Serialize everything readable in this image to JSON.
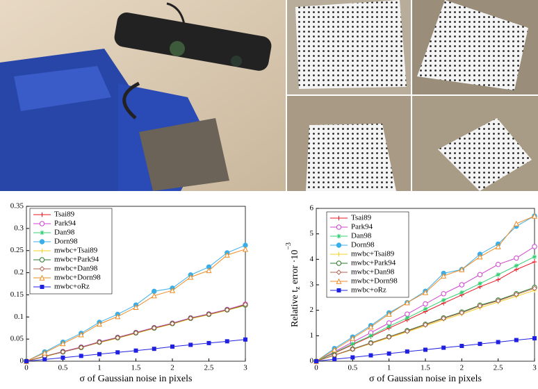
{
  "chart_data": [
    {
      "type": "line",
      "xlabel": "σ of Gaussian noise in pixels",
      "legend": "upper left",
      "x": [
        0,
        0.25,
        0.5,
        0.75,
        1,
        1.25,
        1.5,
        1.75,
        2,
        2.25,
        2.5,
        2.75,
        3
      ],
      "xlim": [
        0,
        3
      ],
      "xticks": [
        0,
        0.5,
        1,
        1.5,
        2,
        2.5,
        3
      ],
      "ylim": [
        0,
        0.35
      ],
      "yticks": [
        0,
        0.05,
        0.1,
        0.15,
        0.2,
        0.25,
        0.3,
        0.35
      ],
      "series": [
        {
          "name": "Tsai89",
          "color": "#e8141e",
          "marker": "plus",
          "values": [
            0,
            0.011,
            0.021,
            0.032,
            0.043,
            0.053,
            0.064,
            0.075,
            0.085,
            0.097,
            0.106,
            0.116,
            0.128
          ]
        },
        {
          "name": "Park94",
          "color": "#d040d0",
          "marker": "circle",
          "values": [
            0,
            0.011,
            0.022,
            0.032,
            0.044,
            0.054,
            0.065,
            0.076,
            0.086,
            0.098,
            0.107,
            0.117,
            0.129
          ]
        },
        {
          "name": "Dan98",
          "color": "#30d070",
          "marker": "asterisk",
          "values": [
            0,
            0.011,
            0.021,
            0.031,
            0.043,
            0.053,
            0.064,
            0.075,
            0.085,
            0.097,
            0.106,
            0.116,
            0.127
          ]
        },
        {
          "name": "Dorn98",
          "color": "#3aaee8",
          "marker": "dot",
          "values": [
            0,
            0.021,
            0.043,
            0.063,
            0.088,
            0.106,
            0.127,
            0.158,
            0.165,
            0.195,
            0.213,
            0.245,
            0.262
          ]
        },
        {
          "name": "mwbc+Tsai89",
          "color": "#f0d020",
          "marker": "plus",
          "values": [
            0,
            0.01,
            0.021,
            0.031,
            0.042,
            0.052,
            0.063,
            0.074,
            0.084,
            0.096,
            0.105,
            0.115,
            0.126
          ]
        },
        {
          "name": "mwbc+Park94",
          "color": "#2a7a2a",
          "marker": "circle",
          "values": [
            0,
            0.011,
            0.021,
            0.031,
            0.043,
            0.053,
            0.064,
            0.075,
            0.085,
            0.097,
            0.106,
            0.116,
            0.127
          ]
        },
        {
          "name": "mwbc+Dan98",
          "color": "#b06050",
          "marker": "diamond",
          "values": [
            0,
            0.011,
            0.021,
            0.031,
            0.043,
            0.053,
            0.064,
            0.075,
            0.085,
            0.097,
            0.106,
            0.116,
            0.128
          ]
        },
        {
          "name": "mwbc+Dorn98",
          "color": "#f08a20",
          "marker": "triangle",
          "values": [
            0,
            0.019,
            0.04,
            0.06,
            0.084,
            0.101,
            0.122,
            0.148,
            0.16,
            0.19,
            0.205,
            0.24,
            0.253
          ]
        },
        {
          "name": "mwbc+oRz",
          "color": "#2020e0",
          "marker": "square",
          "values": [
            0,
            0.004,
            0.008,
            0.012,
            0.016,
            0.02,
            0.024,
            0.028,
            0.033,
            0.037,
            0.041,
            0.045,
            0.049
          ]
        }
      ]
    },
    {
      "type": "line",
      "xlabel": "σ of Gaussian noise in pixels",
      "ylabel": [
        "Relative t",
        "z",
        " error ·10",
        "−3"
      ],
      "legend": "upper left",
      "x": [
        0,
        0.25,
        0.5,
        0.75,
        1,
        1.25,
        1.5,
        1.75,
        2,
        2.25,
        2.5,
        2.75,
        3
      ],
      "xlim": [
        0,
        3
      ],
      "xticks": [
        0,
        0.5,
        1,
        1.5,
        2,
        2.5,
        3
      ],
      "ylim": [
        0,
        6
      ],
      "yticks": [
        0,
        1,
        2,
        3,
        4,
        5,
        6
      ],
      "series": [
        {
          "name": "Tsai89",
          "color": "#e8141e",
          "marker": "plus",
          "values": [
            0,
            0.32,
            0.65,
            0.97,
            1.3,
            1.62,
            1.95,
            2.28,
            2.6,
            2.92,
            3.2,
            3.6,
            3.9
          ]
        },
        {
          "name": "Park94",
          "color": "#d040d0",
          "marker": "circle",
          "values": [
            0,
            0.37,
            0.75,
            1.12,
            1.5,
            1.85,
            2.25,
            2.65,
            3.0,
            3.4,
            3.8,
            4.05,
            4.5
          ]
        },
        {
          "name": "Dan98",
          "color": "#30d070",
          "marker": "asterisk",
          "values": [
            0,
            0.34,
            0.68,
            1.0,
            1.37,
            1.7,
            2.05,
            2.4,
            2.7,
            3.05,
            3.4,
            3.75,
            4.1
          ]
        },
        {
          "name": "Dorn98",
          "color": "#3aaee8",
          "marker": "dot",
          "values": [
            0,
            0.5,
            0.95,
            1.4,
            1.9,
            2.3,
            2.75,
            3.45,
            3.6,
            4.2,
            4.6,
            5.3,
            5.7
          ]
        },
        {
          "name": "mwbc+Tsai89",
          "color": "#f0d020",
          "marker": "plus",
          "values": [
            0,
            0.23,
            0.46,
            0.69,
            0.92,
            1.15,
            1.39,
            1.63,
            1.85,
            2.1,
            2.32,
            2.55,
            2.78
          ]
        },
        {
          "name": "mwbc+Park94",
          "color": "#2a7a2a",
          "marker": "circle",
          "values": [
            0,
            0.24,
            0.48,
            0.72,
            0.96,
            1.2,
            1.45,
            1.7,
            1.93,
            2.2,
            2.4,
            2.65,
            2.9
          ]
        },
        {
          "name": "mwbc+Dan98",
          "color": "#b06050",
          "marker": "diamond",
          "values": [
            0,
            0.24,
            0.47,
            0.71,
            0.95,
            1.18,
            1.43,
            1.68,
            1.9,
            2.17,
            2.37,
            2.62,
            2.86
          ]
        },
        {
          "name": "mwbc+Dorn98",
          "color": "#f08a20",
          "marker": "triangle",
          "values": [
            0,
            0.45,
            0.9,
            1.35,
            1.85,
            2.3,
            2.7,
            3.35,
            3.6,
            4.1,
            4.5,
            5.4,
            5.7
          ]
        },
        {
          "name": "mwbc+oRz",
          "color": "#2020e0",
          "marker": "square",
          "values": [
            0,
            0.08,
            0.15,
            0.23,
            0.3,
            0.38,
            0.45,
            0.53,
            0.6,
            0.68,
            0.75,
            0.83,
            0.9
          ]
        }
      ]
    }
  ]
}
